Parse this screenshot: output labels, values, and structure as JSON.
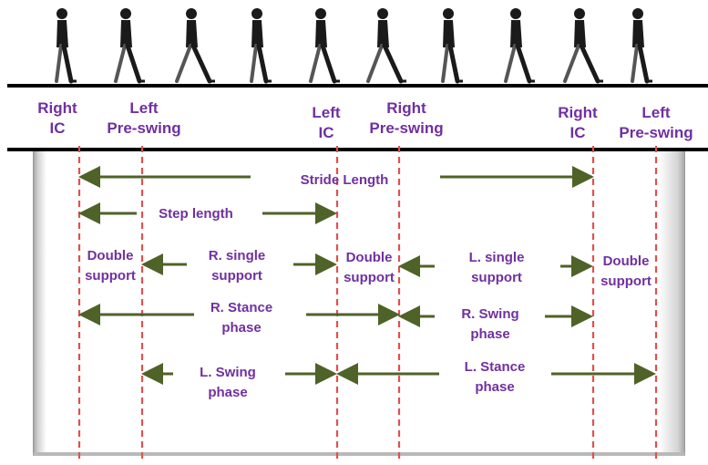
{
  "events": [
    {
      "id": "right-ic-1",
      "lines": [
        "Right",
        "IC"
      ]
    },
    {
      "id": "left-pre-swing-1",
      "lines": [
        "Left",
        "Pre-swing"
      ]
    },
    {
      "id": "left-ic",
      "lines": [
        "Left",
        "IC"
      ]
    },
    {
      "id": "right-pre-swing",
      "lines": [
        "Right",
        "Pre-swing"
      ]
    },
    {
      "id": "right-ic-2",
      "lines": [
        "Right",
        "IC"
      ]
    },
    {
      "id": "left-pre-swing-2",
      "lines": [
        "Left",
        "Pre-swing"
      ]
    }
  ],
  "intervals": {
    "stride_length": "Stride Length",
    "step_length": "Step length",
    "double_support": [
      "Double",
      "support"
    ],
    "r_single_support": [
      "R. single",
      "support"
    ],
    "l_single_support": [
      "L. single",
      "support"
    ],
    "r_stance_phase": [
      "R. Stance",
      "phase"
    ],
    "r_swing_phase": [
      "R. Swing",
      "phase"
    ],
    "l_swing_phase": [
      "L. Swing",
      "phase"
    ],
    "l_stance_phase": [
      "L. Stance",
      "phase"
    ]
  },
  "colors": {
    "label": "#7030a0",
    "arrow": "#4f6228",
    "event_line": "#e05050",
    "figure": "#1a1a1a"
  }
}
